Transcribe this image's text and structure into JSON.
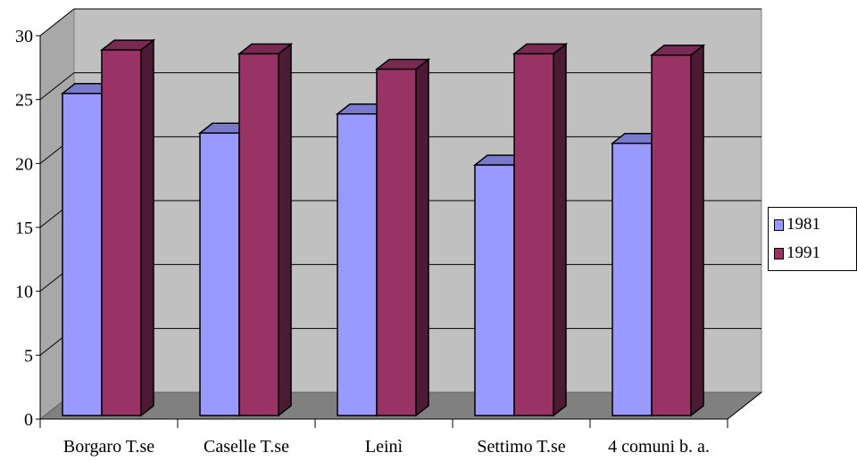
{
  "chart_data": {
    "type": "bar",
    "categories": [
      "Borgaro T.se",
      "Caselle T.se",
      "Leinì",
      "Settimo T.se",
      "4 comuni b. a."
    ],
    "series": [
      {
        "name": "1981",
        "values": [
          25.2,
          22.1,
          23.6,
          19.6,
          21.3
        ],
        "color": "#9999ff"
      },
      {
        "name": "1991",
        "values": [
          28.6,
          28.3,
          27.1,
          28.3,
          28.2
        ],
        "color": "#993366"
      }
    ],
    "ylim": [
      0,
      30
    ],
    "yticks": [
      "0",
      "5",
      "10",
      "15",
      "20",
      "25",
      "30"
    ],
    "grid": true,
    "legend_position": "right",
    "title": "",
    "xlabel": "",
    "ylabel": ""
  }
}
